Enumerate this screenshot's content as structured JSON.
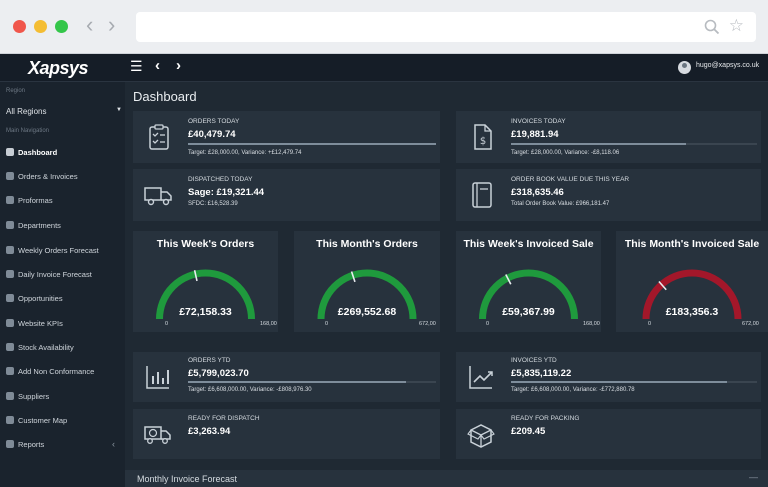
{
  "app": {
    "logo": "Xapsys",
    "user_email": "hugo@xapsys.co.uk"
  },
  "sidebar": {
    "region_label": "Region",
    "region_value": "All Regions",
    "nav_label": "Main Navigation",
    "items": [
      {
        "label": "Dashboard",
        "icon": "dashboard-icon"
      },
      {
        "label": "Orders & Invoices",
        "icon": "orders-icon"
      },
      {
        "label": "Proformas",
        "icon": "proformas-icon"
      },
      {
        "label": "Departments",
        "icon": "departments-icon"
      },
      {
        "label": "Weekly Orders Forecast",
        "icon": "weekly-forecast-icon"
      },
      {
        "label": "Daily Invoice Forecast",
        "icon": "daily-forecast-icon"
      },
      {
        "label": "Opportunities",
        "icon": "opportunities-icon"
      },
      {
        "label": "Website KPIs",
        "icon": "website-kpis-icon"
      },
      {
        "label": "Stock Availability",
        "icon": "stock-icon"
      },
      {
        "label": "Add Non Conformance",
        "icon": "non-conformance-icon"
      },
      {
        "label": "Suppliers",
        "icon": "suppliers-icon"
      },
      {
        "label": "Customer Map",
        "icon": "customer-map-icon"
      },
      {
        "label": "Reports",
        "icon": "reports-icon"
      }
    ]
  },
  "main": {
    "title": "Dashboard",
    "cards": {
      "orders_today": {
        "title": "Orders Today",
        "value": "£40,479.74",
        "sub": "Target: £28,000.00, Variance: +£12,479.74",
        "progress": 1.0
      },
      "invoices_today": {
        "title": "Invoices Today",
        "value": "£19,881.94",
        "sub": "Target: £28,000.00, Variance: -£8,118.06",
        "progress": 0.71
      },
      "dispatched_today": {
        "title": "Dispatched Today",
        "value": "Sage: £19,321.44",
        "sub": "SFDC: £16,528.39"
      },
      "order_book": {
        "title": "Order Book Value Due This Year",
        "value": "£318,635.46",
        "sub": "Total Order Book Value: £966,181.47"
      },
      "orders_ytd": {
        "title": "Orders YTD",
        "value": "£5,799,023.70",
        "sub": "Target: £6,608,000.00, Variance: -£808,976.30",
        "progress": 0.88
      },
      "invoices_ytd": {
        "title": "Invoices YTD",
        "value": "£5,835,119.22",
        "sub": "Target: £6,608,000.00, Variance: -£772,880.78",
        "progress": 0.88
      },
      "ready_dispatch": {
        "title": "Ready for Dispatch",
        "value": "£3,263.94"
      },
      "ready_packing": {
        "title": "Ready for Packing",
        "value": "£209.45"
      }
    },
    "gauges": [
      {
        "title": "This Week's Orders",
        "value": "£72,158.33",
        "min": "0",
        "max": "168,00",
        "fraction": 0.43,
        "color": "#1f9a3d"
      },
      {
        "title": "This Month's Orders",
        "value": "£269,552.68",
        "min": "0",
        "max": "672,00",
        "fraction": 0.4,
        "color": "#1f9a3d"
      },
      {
        "title": "This Week's Invoiced Sale",
        "value": "£59,367.99",
        "min": "0",
        "max": "168,00",
        "fraction": 0.35,
        "color": "#1f9a3d"
      },
      {
        "title": "This Month's Invoiced Sale",
        "value": "£183,356.3",
        "min": "0",
        "max": "672,00",
        "fraction": 0.27,
        "color": "#a3172a"
      }
    ],
    "bottom_title": "Monthly Invoice Forecast",
    "bottom_dash": "—"
  }
}
